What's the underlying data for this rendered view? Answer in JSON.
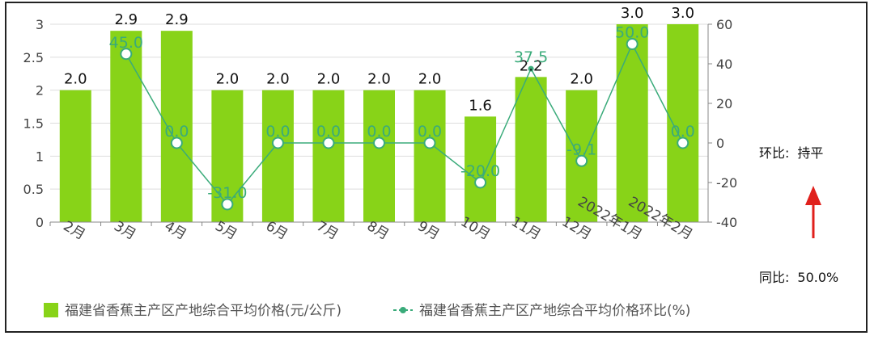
{
  "chart_data": {
    "type": "bar+line",
    "categories": [
      "2月",
      "3月",
      "4月",
      "5月",
      "6月",
      "7月",
      "8月",
      "9月",
      "10月",
      "11月",
      "12月",
      "2022年1月",
      "2022年2月"
    ],
    "series": [
      {
        "name": "福建省香蕉主产区产地综合平均价格(元/公斤)",
        "type": "bar",
        "axis": "left",
        "values": [
          2.0,
          2.9,
          2.9,
          2.0,
          2.0,
          2.0,
          2.0,
          2.0,
          1.6,
          2.2,
          2.0,
          3.0,
          3.0
        ],
        "labels": [
          "2.0",
          "2.9",
          "2.9",
          "2.0",
          "2.0",
          "2.0",
          "2.0",
          "2.0",
          "1.6",
          "2.2",
          "2.0",
          "3.0",
          "3.0"
        ]
      },
      {
        "name": "福建省香蕉主产区产地综合平均价格环比(%)",
        "type": "line",
        "axis": "right",
        "values": [
          null,
          45.0,
          0.0,
          -31.0,
          0.0,
          0.0,
          0.0,
          0.0,
          -20.0,
          37.5,
          -9.1,
          50.0,
          0.0
        ],
        "labels": [
          "",
          "45.0",
          "0.0",
          "-31.0",
          "0.0",
          "0.0",
          "0.0",
          "0.0",
          "-20.0",
          "37.5",
          "-9.1",
          "50.0",
          "0.0"
        ]
      }
    ],
    "y_left": {
      "ylim": [
        0,
        3
      ],
      "ticks": [
        "0",
        "0.5",
        "1",
        "1.5",
        "2",
        "2.5",
        "3"
      ]
    },
    "y_right": {
      "ylim": [
        -40,
        60
      ],
      "ticks": [
        "-40",
        "-20",
        "0",
        "20",
        "40",
        "60"
      ]
    },
    "grid": true,
    "legend": "bottom",
    "colors": {
      "bar": "#88d318",
      "line": "#3aab7a",
      "marker_stroke": "#3aab7a"
    }
  },
  "side_notes": {
    "mom_label": "环比:",
    "mom_value": "持平",
    "yoy_label": "同比:",
    "yoy_value": "50.0%",
    "arrow_color": "#e0201c"
  }
}
